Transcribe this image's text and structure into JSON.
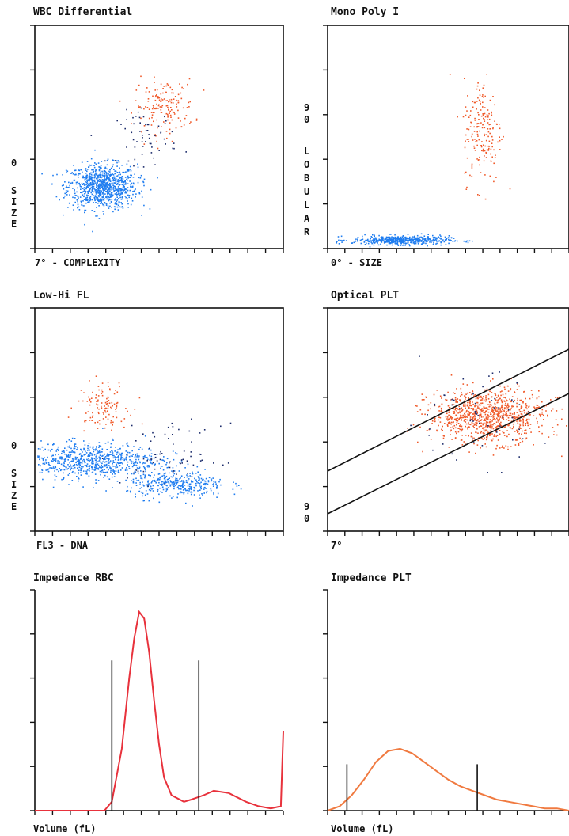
{
  "panels": {
    "wbc": {
      "title": "WBC Differential",
      "x_label": "7° - COMPLEXITY",
      "y_top": "0",
      "y_letters": [
        "S",
        "I",
        "Z",
        "E"
      ]
    },
    "mono": {
      "title": "Mono Poly I",
      "x_label": "0° - SIZE",
      "y_top": "9\n0",
      "y_letters": [
        "L",
        "O",
        "B",
        "U",
        "L",
        "A",
        "R"
      ]
    },
    "lowhi": {
      "title": "Low-Hi FL",
      "x_label": "FL3 - DNA",
      "y_top": "0",
      "y_letters": [
        "S",
        "I",
        "Z",
        "E"
      ]
    },
    "optplt": {
      "title": "Optical PLT",
      "x_label": "7°",
      "y_top": "9\n0"
    },
    "imprbc": {
      "title": "Impedance RBC",
      "x_label": "Volume (fL)"
    },
    "impplt": {
      "title": "Impedance PLT",
      "x_label": "Volume (fL)"
    }
  },
  "colors": {
    "blue": "#1f7df0",
    "orange": "#f05a2a",
    "dark": "#1a2a6a",
    "red": "#e8323c",
    "line": "#f07a40"
  },
  "chart_data": [
    {
      "type": "scatter",
      "title": "WBC Differential",
      "xlabel": "7° - COMPLEXITY",
      "ylabel": "0° SIZE",
      "series": [
        {
          "color": "#1f7df0",
          "cluster_center": [
            0.27,
            0.28
          ],
          "spread": [
            0.07,
            0.05
          ]
        },
        {
          "color": "#f05a2a",
          "cluster_center": [
            0.52,
            0.64
          ],
          "spread": [
            0.06,
            0.06
          ]
        },
        {
          "color": "#1a2a6a",
          "cluster_center": [
            0.45,
            0.5
          ],
          "spread": [
            0.06,
            0.06
          ]
        }
      ]
    },
    {
      "type": "scatter",
      "title": "Mono Poly I",
      "xlabel": "0° - SIZE",
      "ylabel": "90° LOBULAR",
      "series": [
        {
          "color": "#1f7df0",
          "cluster_center": [
            0.3,
            0.04
          ],
          "spread": [
            0.1,
            0.01
          ]
        },
        {
          "color": "#f05a2a",
          "cluster_center": [
            0.64,
            0.53
          ],
          "spread": [
            0.04,
            0.12
          ]
        }
      ]
    },
    {
      "type": "scatter",
      "title": "Low-Hi FL",
      "xlabel": "FL3 - DNA",
      "ylabel": "0° SIZE",
      "series": [
        {
          "color": "#1f7df0",
          "cluster_center": [
            0.22,
            0.32
          ],
          "spread": [
            0.14,
            0.04
          ]
        },
        {
          "color": "#1f7df0",
          "cluster_center": [
            0.57,
            0.21
          ],
          "spread": [
            0.1,
            0.03
          ]
        },
        {
          "color": "#f05a2a",
          "cluster_center": [
            0.27,
            0.57
          ],
          "spread": [
            0.05,
            0.05
          ]
        },
        {
          "color": "#1a2a6a",
          "cluster_center": [
            0.55,
            0.34
          ],
          "spread": [
            0.1,
            0.07
          ]
        }
      ]
    },
    {
      "type": "scatter",
      "title": "Optical PLT",
      "xlabel": "7°",
      "ylabel": "90°",
      "series": [
        {
          "color": "#f05a2a",
          "cluster_center": [
            0.66,
            0.52
          ],
          "spread": [
            0.12,
            0.06
          ]
        },
        {
          "color": "#1a2a6a",
          "cluster_center": [
            0.6,
            0.5
          ],
          "spread": [
            0.15,
            0.1
          ]
        }
      ]
    },
    {
      "type": "line",
      "title": "Impedance RBC",
      "xlabel": "Volume (fL)",
      "x": [
        0,
        0.1,
        0.2,
        0.28,
        0.31,
        0.35,
        0.38,
        0.4,
        0.42,
        0.44,
        0.46,
        0.48,
        0.5,
        0.52,
        0.55,
        0.6,
        0.63,
        0.68,
        0.72,
        0.78,
        0.85,
        0.9,
        0.95,
        0.99,
        1.0
      ],
      "values": [
        0,
        0,
        0,
        0,
        0.04,
        0.28,
        0.6,
        0.78,
        0.9,
        0.87,
        0.72,
        0.5,
        0.3,
        0.15,
        0.07,
        0.04,
        0.05,
        0.07,
        0.09,
        0.08,
        0.04,
        0.02,
        0.01,
        0.02,
        0.36
      ],
      "gates": [
        0.31,
        0.66
      ]
    },
    {
      "type": "line",
      "title": "Impedance PLT",
      "xlabel": "Volume (fL)",
      "x": [
        0,
        0.05,
        0.1,
        0.15,
        0.2,
        0.25,
        0.3,
        0.35,
        0.4,
        0.45,
        0.5,
        0.55,
        0.6,
        0.65,
        0.7,
        0.75,
        0.8,
        0.85,
        0.9,
        0.95,
        1.0
      ],
      "values": [
        0,
        0.02,
        0.07,
        0.14,
        0.22,
        0.27,
        0.28,
        0.26,
        0.22,
        0.18,
        0.14,
        0.11,
        0.09,
        0.07,
        0.05,
        0.04,
        0.03,
        0.02,
        0.01,
        0.01,
        0.0
      ],
      "gates": [
        0.08,
        0.62
      ]
    }
  ]
}
